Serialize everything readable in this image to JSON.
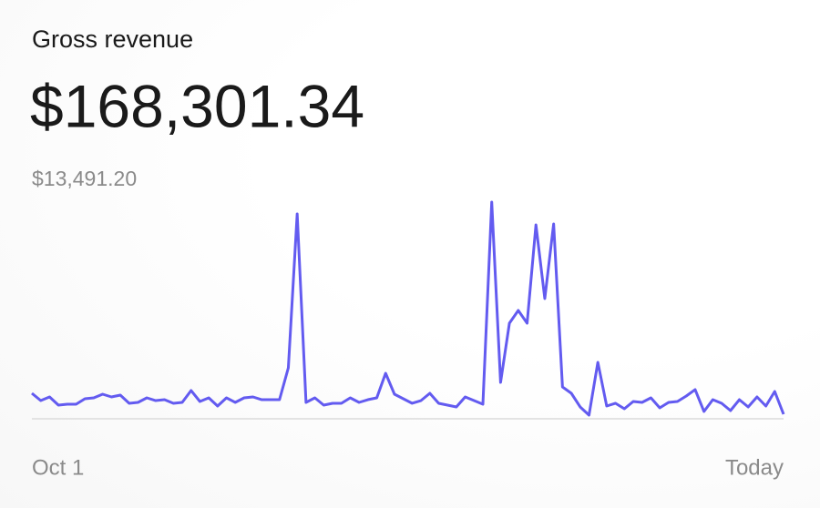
{
  "chart_data": {
    "type": "line",
    "title": "Gross revenue",
    "total": "$168,301.34",
    "color": "#635bf0",
    "ylim": [
      0,
      13491.2
    ],
    "yticks": [
      {
        "value": 13491.2,
        "label": "$13,491.20"
      }
    ],
    "categories": [
      "Oct 1",
      null,
      null,
      null,
      null,
      null,
      null,
      null,
      null,
      null,
      null,
      null,
      null,
      null,
      null,
      null,
      null,
      null,
      null,
      null,
      null,
      null,
      null,
      null,
      null,
      null,
      null,
      null,
      null,
      null,
      null,
      null,
      null,
      null,
      null,
      null,
      null,
      null,
      null,
      null,
      null,
      null,
      null,
      null,
      null,
      null,
      null,
      null,
      null,
      null,
      null,
      null,
      null,
      null,
      null,
      null,
      null,
      null,
      null,
      null,
      null,
      null,
      null,
      null,
      null,
      null,
      null,
      null,
      null,
      null,
      null,
      null,
      null,
      null,
      null,
      null,
      null,
      null,
      null,
      null,
      null,
      null,
      null,
      null,
      null,
      "Today"
    ],
    "values": [
      1574,
      1124,
      1349,
      843,
      899,
      899,
      1237,
      1293,
      1518,
      1349,
      1462,
      956,
      1012,
      1293,
      1124,
      1180,
      956,
      1012,
      1743,
      1068,
      1293,
      787,
      1293,
      1012,
      1293,
      1349,
      1180,
      1180,
      1180,
      3148,
      12648,
      1012,
      1293,
      843,
      956,
      956,
      1293,
      1012,
      1180,
      1293,
      2811,
      1518,
      1237,
      956,
      1124,
      1574,
      956,
      843,
      731,
      1349,
      1124,
      899,
      13379,
      2249,
      5902,
      6689,
      5902,
      11973,
      7420,
      12030,
      1967,
      1574,
      731,
      225,
      3485,
      787,
      956,
      618,
      1068,
      1012,
      1293,
      675,
      1012,
      1068,
      1405,
      1799,
      450,
      1180,
      956,
      506,
      1180,
      731,
      1349,
      787,
      1686,
      281
    ]
  }
}
